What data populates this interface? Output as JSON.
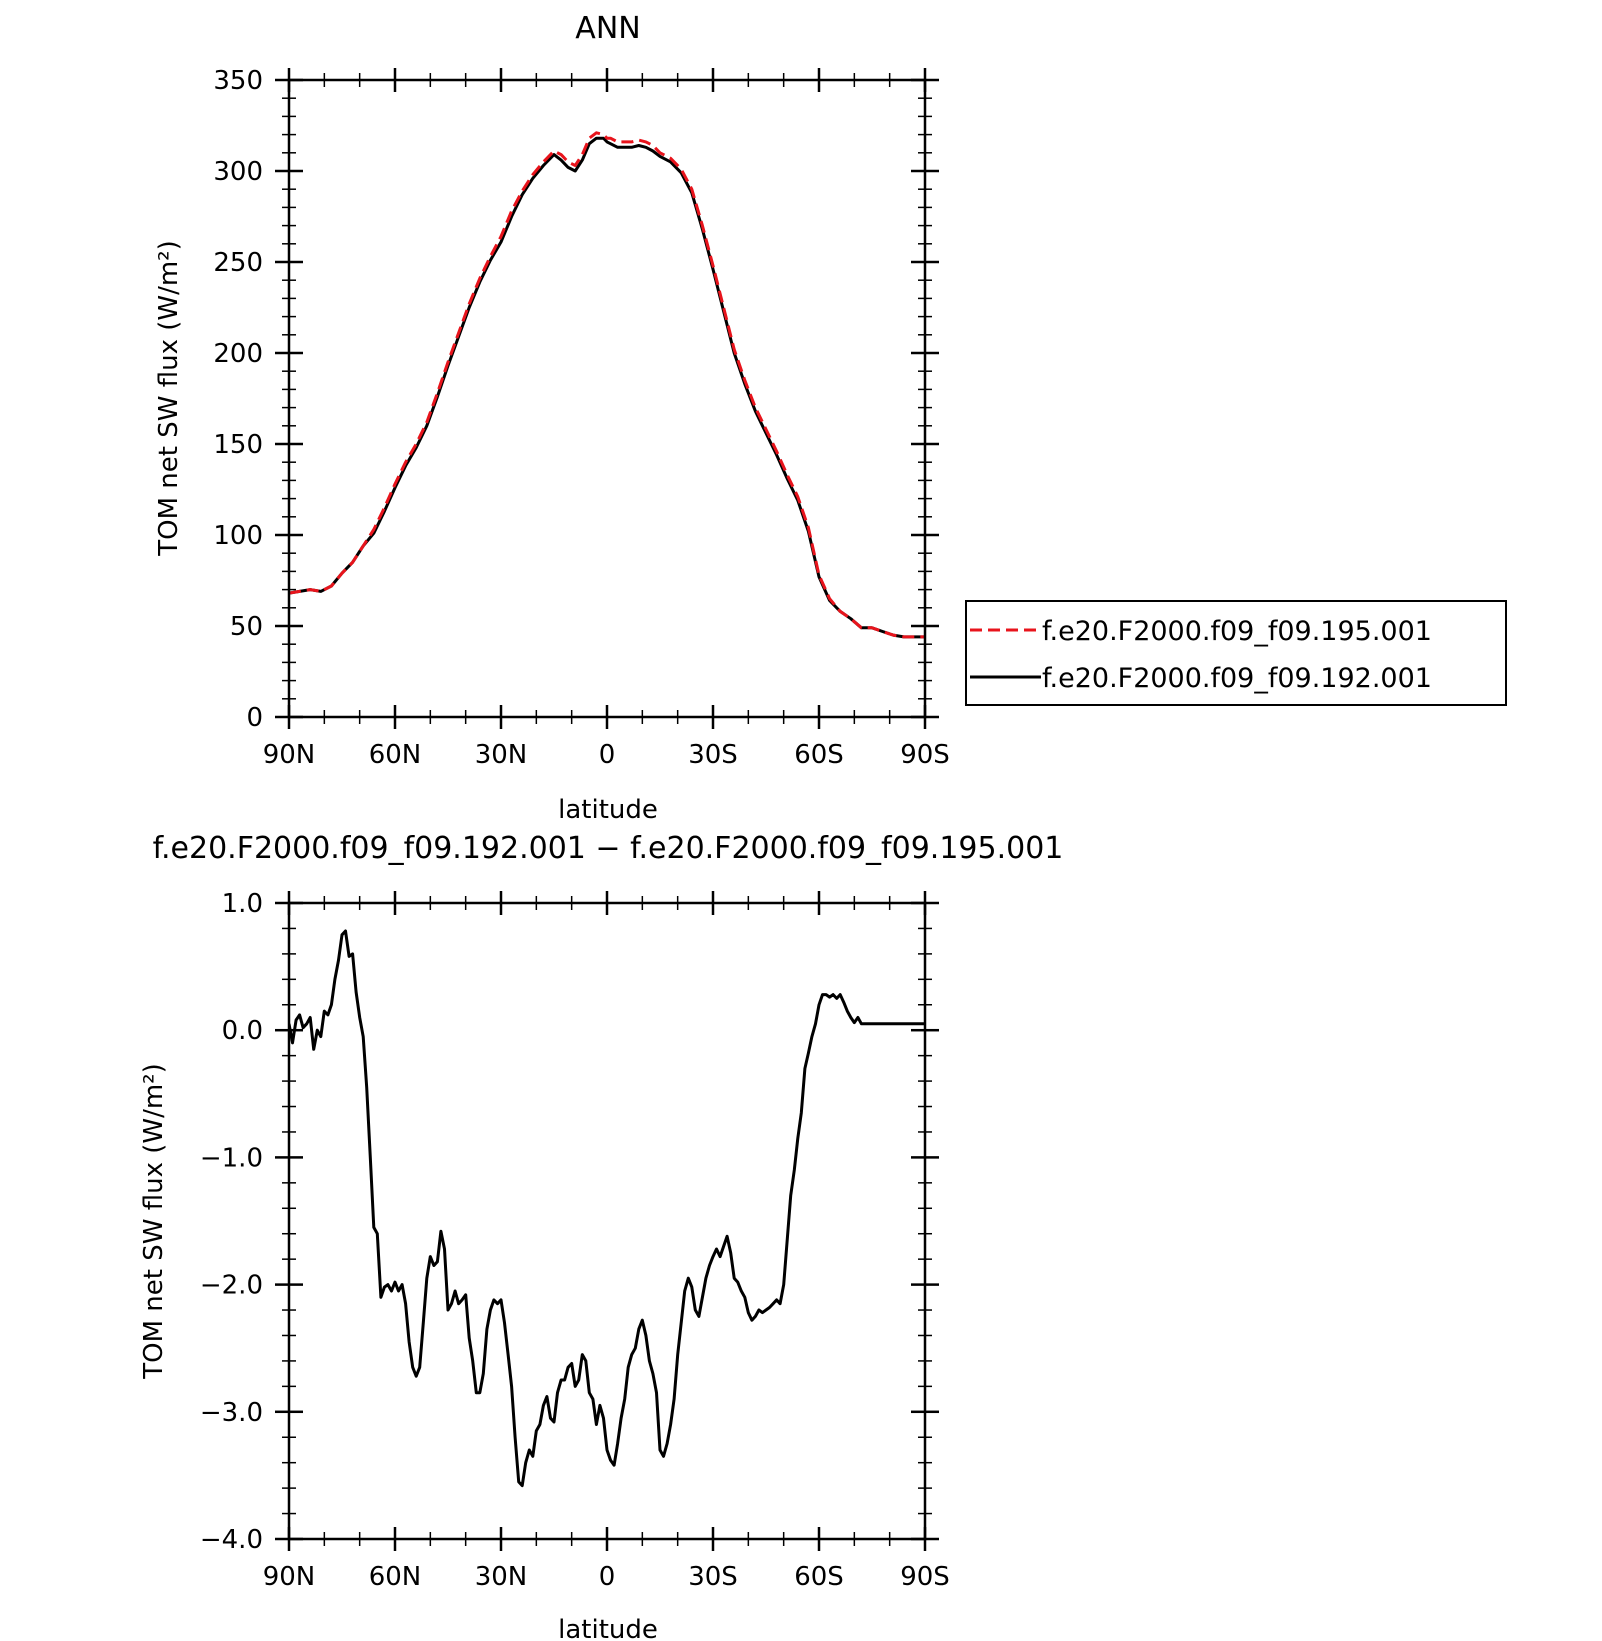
{
  "chart_data": [
    {
      "type": "line",
      "title": "ANN",
      "xlabel": "latitude",
      "ylabel": "TOM net SW flux (W/m²)",
      "xlim": [
        90,
        -90
      ],
      "ylim": [
        0,
        350
      ],
      "x_ticks": [
        90,
        60,
        30,
        0,
        -30,
        -60,
        -90
      ],
      "x_tick_labels": [
        "90N",
        "60N",
        "30N",
        "0",
        "30S",
        "60S",
        "90S"
      ],
      "y_ticks": [
        0,
        50,
        100,
        150,
        200,
        250,
        300,
        350
      ],
      "y_tick_labels": [
        "0",
        "50",
        "100",
        "150",
        "200",
        "250",
        "300",
        "350"
      ],
      "grid": false,
      "legend_position": "right",
      "series": [
        {
          "name": "f.e20.F2000.f09_f09.195.001",
          "color": "#e8141c",
          "dash": "dashed",
          "x": [
            90,
            87,
            84,
            81,
            78,
            75,
            72,
            69,
            66,
            63,
            60,
            57,
            54,
            51,
            48,
            45,
            42,
            39,
            36,
            33,
            30,
            27,
            24,
            21,
            18,
            15,
            13,
            11,
            9,
            7,
            5,
            3,
            1,
            0,
            -1,
            -3,
            -5,
            -7,
            -9,
            -11,
            -13,
            -15,
            -18,
            -21,
            -24,
            -27,
            -30,
            -33,
            -36,
            -39,
            -42,
            -45,
            -48,
            -51,
            -54,
            -57,
            -60,
            -63,
            -66,
            -69,
            -72,
            -75,
            -78,
            -81,
            -84,
            -87,
            -90
          ],
          "y": [
            68,
            69,
            70,
            69,
            72,
            79,
            85,
            94,
            103,
            115,
            128,
            140,
            150,
            162,
            178,
            195,
            211,
            227,
            241,
            253,
            264,
            278,
            289,
            298,
            305,
            311,
            309,
            305,
            303,
            309,
            318,
            321,
            320,
            318,
            318,
            316,
            316,
            316,
            317,
            316,
            314,
            310,
            307,
            301,
            290,
            270,
            248,
            225,
            202,
            185,
            170,
            158,
            146,
            133,
            121,
            104,
            78,
            65,
            58,
            54,
            49,
            49,
            47,
            45,
            44,
            44,
            44
          ]
        },
        {
          "name": "f.e20.F2000.f09_f09.192.001",
          "color": "#000000",
          "dash": "solid",
          "x": [
            90,
            87,
            84,
            81,
            78,
            75,
            72,
            69,
            66,
            63,
            60,
            57,
            54,
            51,
            48,
            45,
            42,
            39,
            36,
            33,
            30,
            27,
            24,
            21,
            18,
            15,
            13,
            11,
            9,
            7,
            5,
            3,
            1,
            0,
            -1,
            -3,
            -5,
            -7,
            -9,
            -11,
            -13,
            -15,
            -18,
            -21,
            -24,
            -27,
            -30,
            -33,
            -36,
            -39,
            -42,
            -45,
            -48,
            -51,
            -54,
            -57,
            -60,
            -63,
            -66,
            -69,
            -72,
            -75,
            -78,
            -81,
            -84,
            -87,
            -90
          ],
          "y": [
            68,
            69,
            70,
            69,
            72,
            79,
            85,
            94,
            101,
            113,
            126,
            138,
            148,
            160,
            176,
            193,
            209,
            225,
            239,
            251,
            261,
            275,
            287,
            296,
            303,
            309,
            306,
            302,
            300,
            306,
            315,
            318,
            318,
            316,
            315,
            313,
            313,
            313,
            314,
            313,
            311,
            308,
            305,
            299,
            288,
            268,
            246,
            223,
            200,
            183,
            168,
            156,
            144,
            131,
            119,
            102,
            77,
            64,
            58,
            54,
            49,
            49,
            47,
            45,
            44,
            44,
            44
          ]
        }
      ]
    },
    {
      "type": "line",
      "title": "f.e20.F2000.f09_f09.192.001 − f.e20.F2000.f09_f09.195.001",
      "xlabel": "latitude",
      "ylabel": "TOM net SW flux (W/m²)",
      "xlim": [
        90,
        -90
      ],
      "ylim": [
        -4.0,
        1.0
      ],
      "x_ticks": [
        90,
        60,
        30,
        0,
        -30,
        -60,
        -90
      ],
      "x_tick_labels": [
        "90N",
        "60N",
        "30N",
        "0",
        "30S",
        "60S",
        "90S"
      ],
      "y_ticks": [
        -4.0,
        -3.0,
        -2.0,
        -1.0,
        0.0,
        1.0
      ],
      "y_tick_labels": [
        "−4.0",
        "−3.0",
        "−2.0",
        "−1.0",
        "0.0",
        "1.0"
      ],
      "grid": false,
      "series": [
        {
          "color": "#000000",
          "x": [
            90,
            89,
            88,
            87,
            86,
            85,
            84,
            83,
            82,
            81,
            80,
            79,
            78,
            77,
            76,
            75,
            74,
            73,
            72,
            71,
            70,
            69,
            68,
            67,
            66,
            65,
            64,
            63,
            62,
            61,
            60,
            59,
            58,
            57,
            56,
            55,
            54,
            53,
            52,
            51,
            50,
            49,
            48,
            47,
            46,
            45,
            44,
            43,
            42,
            41,
            40,
            39,
            38,
            37,
            36,
            35,
            34,
            33,
            32,
            31,
            30,
            29,
            28,
            27,
            26,
            25,
            24,
            23,
            22,
            21,
            20,
            19,
            18,
            17,
            16,
            15,
            14,
            13,
            12,
            11,
            10,
            9,
            8,
            7,
            6,
            5,
            4,
            3,
            2,
            1,
            0,
            -1,
            -2,
            -3,
            -4,
            -5,
            -6,
            -7,
            -8,
            -9,
            -10,
            -11,
            -12,
            -13,
            -14,
            -15,
            -16,
            -17,
            -18,
            -19,
            -20,
            -21,
            -22,
            -23,
            -24,
            -25,
            -26,
            -27,
            -28,
            -29,
            -30,
            -31,
            -32,
            -33,
            -34,
            -35,
            -36,
            -37,
            -38,
            -39,
            -40,
            -41,
            -42,
            -43,
            -44,
            -45,
            -46,
            -47,
            -48,
            -49,
            -50,
            -51,
            -52,
            -53,
            -54,
            -55,
            -56,
            -57,
            -58,
            -59,
            -60,
            -61,
            -62,
            -63,
            -64,
            -65,
            -66,
            -67,
            -68,
            -69,
            -70,
            -71,
            -72,
            -73,
            -74,
            -75,
            -76,
            -77,
            -78,
            -79,
            -80,
            -81,
            -82,
            -83,
            -84,
            -85,
            -86,
            -87,
            -88,
            -89,
            -90
          ],
          "y": [
            0.05,
            -0.1,
            0.08,
            0.12,
            0.02,
            0.05,
            0.1,
            -0.15,
            0.0,
            -0.05,
            0.15,
            0.12,
            0.2,
            0.4,
            0.55,
            0.75,
            0.78,
            0.58,
            0.6,
            0.3,
            0.1,
            -0.05,
            -0.45,
            -1.0,
            -1.55,
            -1.6,
            -2.1,
            -2.02,
            -2.0,
            -2.05,
            -1.98,
            -2.05,
            -2.0,
            -2.15,
            -2.45,
            -2.65,
            -2.72,
            -2.65,
            -2.3,
            -1.95,
            -1.78,
            -1.85,
            -1.82,
            -1.58,
            -1.72,
            -2.2,
            -2.15,
            -2.05,
            -2.15,
            -2.12,
            -2.08,
            -2.42,
            -2.6,
            -2.85,
            -2.85,
            -2.7,
            -2.35,
            -2.2,
            -2.12,
            -2.15,
            -2.12,
            -2.3,
            -2.55,
            -2.8,
            -3.2,
            -3.55,
            -3.58,
            -3.4,
            -3.3,
            -3.35,
            -3.15,
            -3.1,
            -2.95,
            -2.88,
            -3.05,
            -3.08,
            -2.85,
            -2.75,
            -2.75,
            -2.65,
            -2.62,
            -2.8,
            -2.75,
            -2.55,
            -2.6,
            -2.85,
            -2.9,
            -3.1,
            -2.95,
            -3.05,
            -3.3,
            -3.38,
            -3.42,
            -3.25,
            -3.05,
            -2.9,
            -2.65,
            -2.55,
            -2.5,
            -2.35,
            -2.28,
            -2.4,
            -2.6,
            -2.7,
            -2.85,
            -3.3,
            -3.35,
            -3.25,
            -3.1,
            -2.9,
            -2.55,
            -2.3,
            -2.05,
            -1.95,
            -2.02,
            -2.2,
            -2.25,
            -2.1,
            -1.95,
            -1.85,
            -1.78,
            -1.72,
            -1.78,
            -1.7,
            -1.62,
            -1.75,
            -1.95,
            -1.98,
            -2.05,
            -2.1,
            -2.22,
            -2.28,
            -2.25,
            -2.2,
            -2.22,
            -2.2,
            -2.18,
            -2.15,
            -2.12,
            -2.15,
            -2.0,
            -1.65,
            -1.3,
            -1.1,
            -0.85,
            -0.65,
            -0.3,
            -0.18,
            -0.05,
            0.05,
            0.2,
            0.28,
            0.28,
            0.26,
            0.28,
            0.25,
            0.28,
            0.22,
            0.15,
            0.1,
            0.06,
            0.1,
            0.05,
            0.05,
            0.05,
            0.05,
            0.05,
            0.05,
            0.05,
            0.05,
            0.05,
            0.05,
            0.05,
            0.05,
            0.05,
            0.05,
            0.05,
            0.05,
            0.05,
            0.05,
            0.05
          ]
        }
      ]
    }
  ]
}
